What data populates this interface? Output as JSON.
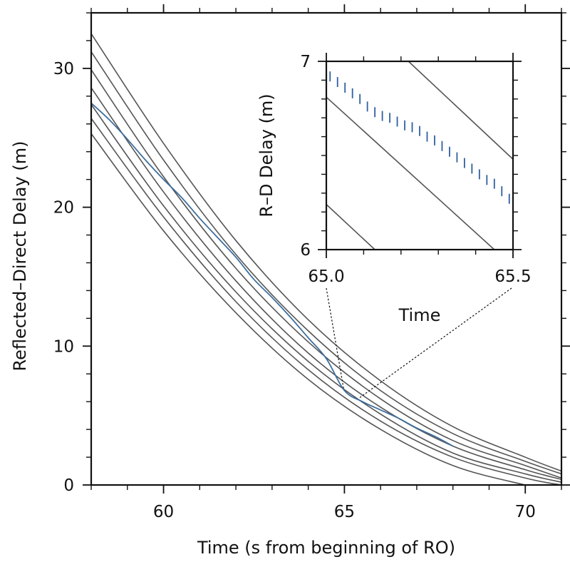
{
  "chart_data": [
    {
      "type": "line",
      "xlabel": "Time (s from beginning of RO)",
      "ylabel": "Reflected–Direct Delay (m)",
      "xlim": [
        58,
        71
      ],
      "ylim": [
        0,
        34
      ],
      "xticks": [
        60,
        65,
        70
      ],
      "yticks": [
        0,
        10,
        20,
        30
      ],
      "xtick_labels": [
        "60",
        "65",
        "70"
      ],
      "ytick_labels": [
        "0",
        "10",
        "20",
        "30"
      ],
      "model_curves": [
        {
          "x": [
            58,
            60,
            62,
            64,
            66,
            68,
            70,
            71
          ],
          "y": [
            25.3,
            18.3,
            12.4,
            7.6,
            4.0,
            1.4,
            0.0,
            -0.5
          ]
        },
        {
          "x": [
            58,
            60,
            62,
            64,
            66,
            68,
            70,
            71
          ],
          "y": [
            26.4,
            19.3,
            13.2,
            8.3,
            4.6,
            2.0,
            0.5,
            0.0
          ]
        },
        {
          "x": [
            58,
            60,
            62,
            64,
            66,
            68,
            70,
            71
          ],
          "y": [
            27.4,
            20.1,
            13.9,
            8.9,
            5.1,
            2.3,
            0.8,
            0.2
          ]
        },
        {
          "x": [
            58,
            60,
            62,
            64,
            66,
            68,
            70,
            71
          ],
          "y": [
            28.6,
            21.1,
            14.7,
            9.5,
            5.6,
            2.8,
            1.1,
            0.4
          ]
        },
        {
          "x": [
            58,
            60,
            62,
            64,
            66,
            68,
            70,
            71
          ],
          "y": [
            29.9,
            22.2,
            15.6,
            10.3,
            6.2,
            3.2,
            1.4,
            0.5
          ]
        },
        {
          "x": [
            58,
            60,
            62,
            64,
            66,
            68,
            70,
            71
          ],
          "y": [
            31.2,
            23.4,
            16.6,
            11.1,
            6.8,
            3.7,
            1.7,
            0.8
          ]
        },
        {
          "x": [
            58,
            60,
            62,
            64,
            66,
            68,
            70,
            71
          ],
          "y": [
            32.5,
            24.6,
            17.6,
            11.9,
            7.5,
            4.2,
            2.0,
            1.0
          ]
        }
      ],
      "observed": {
        "x": [
          58.0,
          58.5,
          59.0,
          59.5,
          60.0,
          60.5,
          61.0,
          61.5,
          62.0,
          62.5,
          63.0,
          63.5,
          64.0,
          64.5,
          65.0,
          65.5,
          66.0,
          66.5,
          67.0,
          67.5,
          68.0
        ],
        "y": [
          27.5,
          26.3,
          24.9,
          23.4,
          22.0,
          20.7,
          19.2,
          17.8,
          16.4,
          14.8,
          13.5,
          12.1,
          10.6,
          9.1,
          6.8,
          6.0,
          5.4,
          4.8,
          4.1,
          3.5,
          2.8
        ]
      }
    },
    {
      "type": "line",
      "xlabel": "Time",
      "ylabel": "R–D Delay (m)",
      "xlim": [
        65.0,
        65.5
      ],
      "ylim": [
        6,
        7
      ],
      "xtick_labels": [
        "65.0",
        "65.5"
      ],
      "ytick_labels": [
        "6",
        "7"
      ],
      "model_segments": [
        {
          "x": [
            65.0,
            65.13
          ],
          "y": [
            6.24,
            6.0
          ]
        },
        {
          "x": [
            65.0,
            65.45
          ],
          "y": [
            6.81,
            6.0
          ]
        },
        {
          "x": [
            65.22,
            65.5
          ],
          "y": [
            7.0,
            6.48
          ]
        }
      ],
      "observed_samples": {
        "x": [
          65.01,
          65.03,
          65.05,
          65.07,
          65.09,
          65.11,
          65.13,
          65.15,
          65.17,
          65.19,
          65.21,
          65.23,
          65.25,
          65.27,
          65.29,
          65.31,
          65.33,
          65.35,
          65.37,
          65.39,
          65.41,
          65.43,
          65.45,
          65.47,
          65.49
        ],
        "y": [
          6.92,
          6.89,
          6.86,
          6.83,
          6.8,
          6.76,
          6.73,
          6.71,
          6.7,
          6.68,
          6.66,
          6.65,
          6.63,
          6.6,
          6.58,
          6.55,
          6.52,
          6.49,
          6.46,
          6.43,
          6.4,
          6.37,
          6.35,
          6.31,
          6.27
        ]
      }
    }
  ]
}
